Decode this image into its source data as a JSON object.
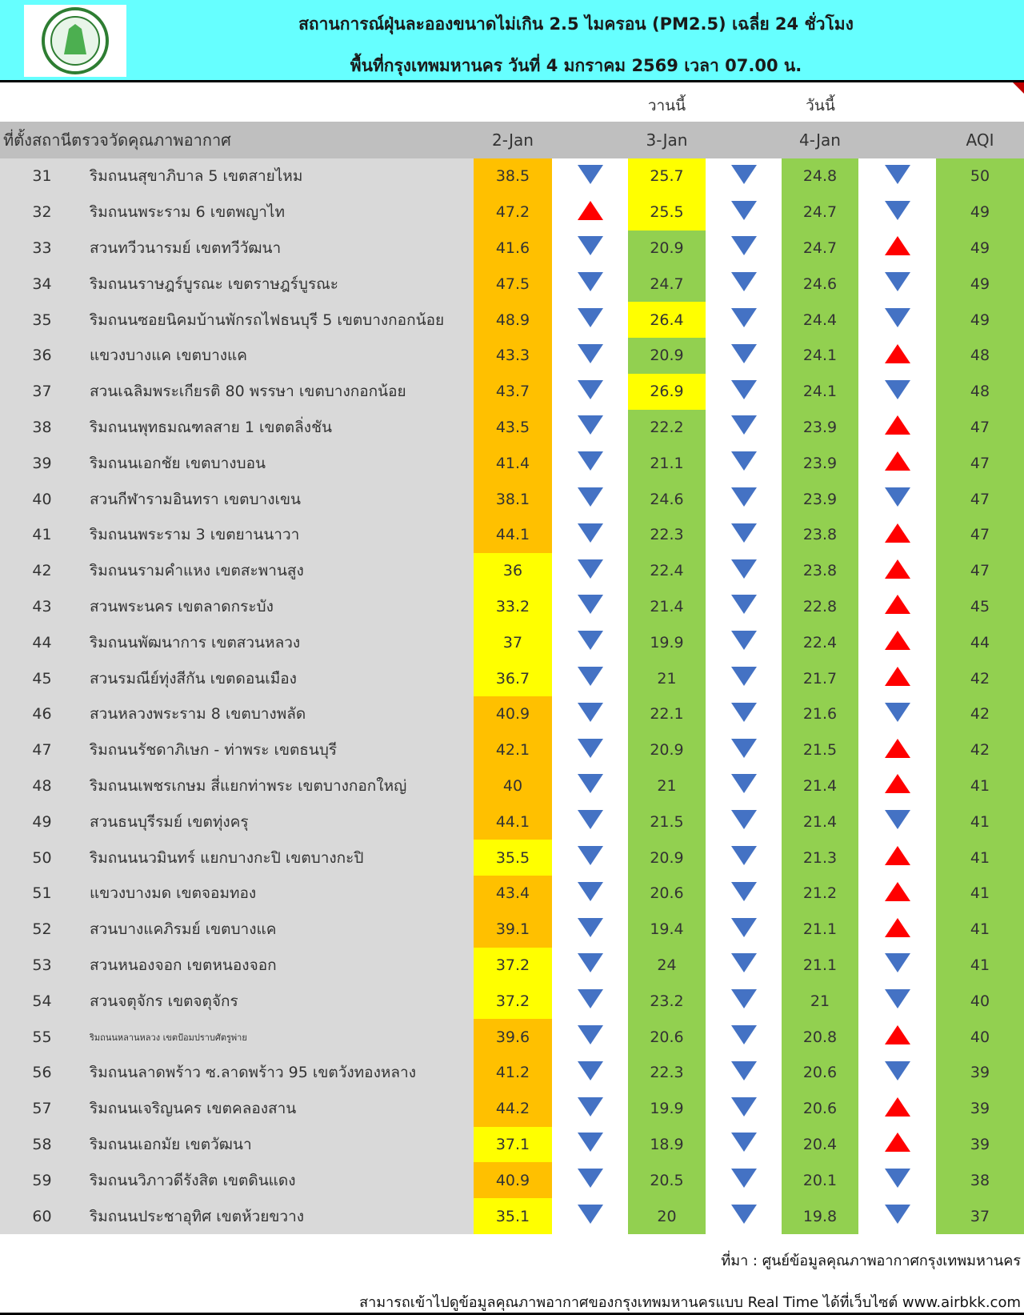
{
  "header": {
    "title": "สถานการณ์ฝุ่นละอองขนาดไม่เกิน 2.5 ไมครอน (PM2.5) เฉลี่ย 24 ชั่วโมง",
    "subtitle": "พื้นที่กรุงเทพมหานคร วันที่ 4 มกราคม 2569 เวลา 07.00 น."
  },
  "table": {
    "day_labels": [
      "วานนี้",
      "วันนี้"
    ],
    "columns": [
      "ที่ตั้งสถานีตรวจวัดคุณภาพอากาศ",
      "2-Jan",
      "3-Jan",
      "4-Jan",
      "AQI"
    ],
    "trend_colors": {
      "up": "#ff0000",
      "down": "#4472c4"
    },
    "aqi_color": "#92d050",
    "rows": [
      {
        "no": 31,
        "name": "ริมถนนสุขาภิบาล 5 เขตสายไหม",
        "values": [
          38.5,
          25.7,
          24.8
        ],
        "colors": [
          "#ffc000",
          "#ffff00",
          "#92d050"
        ],
        "trends": [
          "down",
          "down",
          "down"
        ],
        "aqi": 50
      },
      {
        "no": 32,
        "name": "ริมถนนพระราม 6 เขตพญาไท",
        "values": [
          47.2,
          25.5,
          24.7
        ],
        "colors": [
          "#ffc000",
          "#ffff00",
          "#92d050"
        ],
        "trends": [
          "up",
          "down",
          "down"
        ],
        "aqi": 49
      },
      {
        "no": 33,
        "name": "สวนทวีวนารมย์ เขตทวีวัฒนา",
        "values": [
          41.6,
          20.9,
          24.7
        ],
        "colors": [
          "#ffc000",
          "#92d050",
          "#92d050"
        ],
        "trends": [
          "down",
          "down",
          "up"
        ],
        "aqi": 49
      },
      {
        "no": 34,
        "name": "ริมถนนราษฎร์บูรณะ เขตราษฎร์บูรณะ",
        "values": [
          47.5,
          24.7,
          24.6
        ],
        "colors": [
          "#ffc000",
          "#92d050",
          "#92d050"
        ],
        "trends": [
          "down",
          "down",
          "down"
        ],
        "aqi": 49
      },
      {
        "no": 35,
        "name": "ริมถนนซอยนิคมบ้านพักรถไฟธนบุรี 5 เขตบางกอกน้อย",
        "values": [
          48.9,
          26.4,
          24.4
        ],
        "colors": [
          "#ffc000",
          "#ffff00",
          "#92d050"
        ],
        "trends": [
          "down",
          "down",
          "down"
        ],
        "aqi": 49
      },
      {
        "no": 36,
        "name": "แขวงบางแค เขตบางแค",
        "values": [
          43.3,
          20.9,
          24.1
        ],
        "colors": [
          "#ffc000",
          "#92d050",
          "#92d050"
        ],
        "trends": [
          "down",
          "down",
          "up"
        ],
        "aqi": 48
      },
      {
        "no": 37,
        "name": "สวนเฉลิมพระเกียรติ 80 พรรษา  เขตบางกอกน้อย",
        "values": [
          43.7,
          26.9,
          24.1
        ],
        "colors": [
          "#ffc000",
          "#ffff00",
          "#92d050"
        ],
        "trends": [
          "down",
          "down",
          "down"
        ],
        "aqi": 48
      },
      {
        "no": 38,
        "name": "ริมถนนพุทธมณฑลสาย 1 เขตตลิ่งชัน",
        "values": [
          43.5,
          22.2,
          23.9
        ],
        "colors": [
          "#ffc000",
          "#92d050",
          "#92d050"
        ],
        "trends": [
          "down",
          "down",
          "up"
        ],
        "aqi": 47
      },
      {
        "no": 39,
        "name": "ริมถนนเอกชัย เขตบางบอน",
        "values": [
          41.4,
          21.1,
          23.9
        ],
        "colors": [
          "#ffc000",
          "#92d050",
          "#92d050"
        ],
        "trends": [
          "down",
          "down",
          "up"
        ],
        "aqi": 47
      },
      {
        "no": 40,
        "name": "สวนกีฬารามอินทรา เขตบางเขน",
        "values": [
          38.1,
          24.6,
          23.9
        ],
        "colors": [
          "#ffc000",
          "#92d050",
          "#92d050"
        ],
        "trends": [
          "down",
          "down",
          "down"
        ],
        "aqi": 47
      },
      {
        "no": 41,
        "name": "ริมถนนพระราม 3 เขตยานนาวา",
        "values": [
          44.1,
          22.3,
          23.8
        ],
        "colors": [
          "#ffc000",
          "#92d050",
          "#92d050"
        ],
        "trends": [
          "down",
          "down",
          "up"
        ],
        "aqi": 47
      },
      {
        "no": 42,
        "name": "ริมถนนรามคำแหง เขตสะพานสูง",
        "values": [
          36,
          22.4,
          23.8
        ],
        "colors": [
          "#ffff00",
          "#92d050",
          "#92d050"
        ],
        "trends": [
          "down",
          "down",
          "up"
        ],
        "aqi": 47
      },
      {
        "no": 43,
        "name": "สวนพระนคร เขตลาดกระบัง",
        "values": [
          33.2,
          21.4,
          22.8
        ],
        "colors": [
          "#ffff00",
          "#92d050",
          "#92d050"
        ],
        "trends": [
          "down",
          "down",
          "up"
        ],
        "aqi": 45
      },
      {
        "no": 44,
        "name": "ริมถนนพัฒนาการ เขตสวนหลวง",
        "values": [
          37,
          19.9,
          22.4
        ],
        "colors": [
          "#ffff00",
          "#92d050",
          "#92d050"
        ],
        "trends": [
          "down",
          "down",
          "up"
        ],
        "aqi": 44
      },
      {
        "no": 45,
        "name": "สวนรมณีย์ทุ่งสีกัน เขตดอนเมือง",
        "values": [
          36.7,
          21,
          21.7
        ],
        "colors": [
          "#ffff00",
          "#92d050",
          "#92d050"
        ],
        "trends": [
          "down",
          "down",
          "up"
        ],
        "aqi": 42
      },
      {
        "no": 46,
        "name": "สวนหลวงพระราม 8 เขตบางพลัด",
        "values": [
          40.9,
          22.1,
          21.6
        ],
        "colors": [
          "#ffc000",
          "#92d050",
          "#92d050"
        ],
        "trends": [
          "down",
          "down",
          "down"
        ],
        "aqi": 42
      },
      {
        "no": 47,
        "name": "ริมถนนรัชดาภิเษก - ท่าพระ เขตธนบุรี",
        "values": [
          42.1,
          20.9,
          21.5
        ],
        "colors": [
          "#ffc000",
          "#92d050",
          "#92d050"
        ],
        "trends": [
          "down",
          "down",
          "up"
        ],
        "aqi": 42
      },
      {
        "no": 48,
        "name": "ริมถนนเพชรเกษม สี่แยกท่าพระ เขตบางกอกใหญ่",
        "values": [
          40,
          21,
          21.4
        ],
        "colors": [
          "#ffc000",
          "#92d050",
          "#92d050"
        ],
        "trends": [
          "down",
          "down",
          "up"
        ],
        "aqi": 41
      },
      {
        "no": 49,
        "name": "สวนธนบุรีรมย์ เขตทุ่งครุ",
        "values": [
          44.1,
          21.5,
          21.4
        ],
        "colors": [
          "#ffc000",
          "#92d050",
          "#92d050"
        ],
        "trends": [
          "down",
          "down",
          "down"
        ],
        "aqi": 41
      },
      {
        "no": 50,
        "name": "ริมถนนนวมินทร์ แยกบางกะปิ เขตบางกะปิ",
        "values": [
          35.5,
          20.9,
          21.3
        ],
        "colors": [
          "#ffff00",
          "#92d050",
          "#92d050"
        ],
        "trends": [
          "down",
          "down",
          "up"
        ],
        "aqi": 41
      },
      {
        "no": 51,
        "name": "แขวงบางมด เขตจอมทอง",
        "values": [
          43.4,
          20.6,
          21.2
        ],
        "colors": [
          "#ffc000",
          "#92d050",
          "#92d050"
        ],
        "trends": [
          "down",
          "down",
          "up"
        ],
        "aqi": 41
      },
      {
        "no": 52,
        "name": "สวนบางแคภิรมย์ เขตบางแค",
        "values": [
          39.1,
          19.4,
          21.1
        ],
        "colors": [
          "#ffc000",
          "#92d050",
          "#92d050"
        ],
        "trends": [
          "down",
          "down",
          "up"
        ],
        "aqi": 41
      },
      {
        "no": 53,
        "name": "สวนหนองจอก เขตหนองจอก",
        "values": [
          37.2,
          24,
          21.1
        ],
        "colors": [
          "#ffff00",
          "#92d050",
          "#92d050"
        ],
        "trends": [
          "down",
          "down",
          "down"
        ],
        "aqi": 41
      },
      {
        "no": 54,
        "name": "สวนจตุจักร เขตจตุจักร",
        "values": [
          37.2,
          23.2,
          21
        ],
        "colors": [
          "#ffff00",
          "#92d050",
          "#92d050"
        ],
        "trends": [
          "down",
          "down",
          "down"
        ],
        "aqi": 40
      },
      {
        "no": 55,
        "name": "ริมถนนหลานหลวง เขตป้อมปราบศัตรูพ่าย",
        "values": [
          39.6,
          20.6,
          20.8
        ],
        "colors": [
          "#ffc000",
          "#92d050",
          "#92d050"
        ],
        "trends": [
          "down",
          "down",
          "up"
        ],
        "aqi": 40
      },
      {
        "no": 56,
        "name": "ริมถนนลาดพร้าว ซ.ลาดพร้าว 95 เขตวังทองหลาง",
        "values": [
          41.2,
          22.3,
          20.6
        ],
        "colors": [
          "#ffc000",
          "#92d050",
          "#92d050"
        ],
        "trends": [
          "down",
          "down",
          "down"
        ],
        "aqi": 39
      },
      {
        "no": 57,
        "name": "ริมถนนเจริญนคร เขตคลองสาน",
        "values": [
          44.2,
          19.9,
          20.6
        ],
        "colors": [
          "#ffc000",
          "#92d050",
          "#92d050"
        ],
        "trends": [
          "down",
          "down",
          "up"
        ],
        "aqi": 39
      },
      {
        "no": 58,
        "name": "ริมถนนเอกมัย เขตวัฒนา",
        "values": [
          37.1,
          18.9,
          20.4
        ],
        "colors": [
          "#ffff00",
          "#92d050",
          "#92d050"
        ],
        "trends": [
          "down",
          "down",
          "up"
        ],
        "aqi": 39
      },
      {
        "no": 59,
        "name": "ริมถนนวิภาวดีรังสิต เขตดินแดง",
        "values": [
          40.9,
          20.5,
          20.1
        ],
        "colors": [
          "#ffc000",
          "#92d050",
          "#92d050"
        ],
        "trends": [
          "down",
          "down",
          "down"
        ],
        "aqi": 38
      },
      {
        "no": 60,
        "name": "ริมถนนประชาอุทิศ เขตห้วยขวาง",
        "values": [
          35.1,
          20,
          19.8
        ],
        "colors": [
          "#ffff00",
          "#92d050",
          "#92d050"
        ],
        "trends": [
          "down",
          "down",
          "down"
        ],
        "aqi": 37
      }
    ]
  },
  "footer": {
    "source": "ที่มา : ศูนย์ข้อมูลคุณภาพอากาศกรุงเทพมหานคร",
    "note": "สามารถเข้าไปดูข้อมูลคุณภาพอากาศของกรุงเทพมหานครแบบ Real Time ได้ที่เว็บไซต์ www.airbkk.com"
  }
}
